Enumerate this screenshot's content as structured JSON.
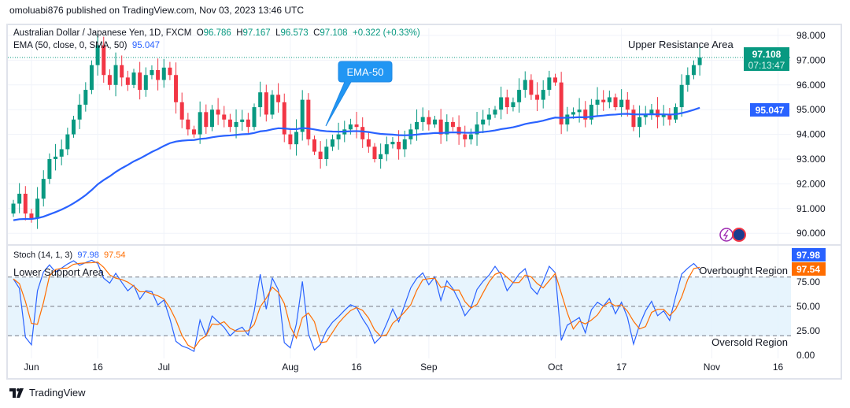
{
  "header": {
    "published": "omoluabi876 published on TradingView.com, Nov 03, 2023 13:46 UTC"
  },
  "legend": {
    "symbol": "Australian Dollar / Japanese Yen, 1D, FXCM",
    "o_label": "O",
    "o": "96.786",
    "h_label": "H",
    "h": "97.167",
    "l_label": "L",
    "l": "96.573",
    "c_label": "C",
    "c": "97.108",
    "change": "+0.322 (+0.33%)",
    "ema_label": "EMA (50, close, 0, SMA, 50)",
    "ema_value": "95.047",
    "stoch_label": "Stoch (14, 1, 3)",
    "stoch_k": "97.98",
    "stoch_d": "97.54"
  },
  "annotations": {
    "upper": "Upper Resistance Area",
    "lower": "Lower Support Area",
    "ema_callout": "EMA-50",
    "overbought": "Overbought Region",
    "oversold": "Oversold Region"
  },
  "price_tag": {
    "price": "97.108",
    "countdown": "07:13:47",
    "ema": "95.047"
  },
  "footer": {
    "brand": "TradingView"
  },
  "colors": {
    "up": "#089981",
    "down": "#f23645",
    "ema": "#2962ff",
    "k": "#2962ff",
    "d": "#ff6d00",
    "band": "#e3f2fd"
  },
  "chart_data": {
    "type": "candlestick",
    "title": "Australian Dollar / Japanese Yen, 1D, FXCM",
    "y_ticks": [
      "98.000",
      "97.000",
      "96.000",
      "95.000",
      "94.000",
      "93.000",
      "92.000",
      "91.000",
      "90.000"
    ],
    "ylim": [
      89.7,
      98.3
    ],
    "x_ticks": [
      {
        "label": "Jun",
        "i": 3
      },
      {
        "label": "16",
        "i": 14
      },
      {
        "label": "Jul",
        "i": 25
      },
      {
        "label": "Aug",
        "i": 46
      },
      {
        "label": "16",
        "i": 57
      },
      {
        "label": "Sep",
        "i": 69
      },
      {
        "label": "Oct",
        "i": 90
      },
      {
        "label": "17",
        "i": 101
      },
      {
        "label": "Nov",
        "i": 116
      },
      {
        "label": "16",
        "i": 127
      }
    ],
    "close": [
      91.2,
      91.6,
      90.8,
      90.6,
      91.4,
      92.2,
      93.0,
      93.1,
      93.4,
      94.0,
      94.6,
      95.2,
      95.8,
      96.8,
      97.6,
      96.4,
      96.0,
      96.8,
      96.3,
      96.0,
      96.5,
      95.8,
      96.4,
      96.6,
      96.2,
      96.7,
      96.4,
      95.3,
      94.6,
      94.2,
      94.0,
      94.9,
      94.3,
      95.0,
      94.8,
      94.6,
      94.3,
      94.5,
      94.6,
      94.3,
      95.1,
      95.7,
      94.8,
      95.6,
      95.3,
      94.0,
      93.6,
      94.1,
      95.4,
      93.8,
      93.3,
      93.0,
      93.5,
      93.8,
      94.0,
      94.2,
      94.4,
      94.3,
      93.8,
      93.5,
      93.0,
      93.2,
      93.6,
      93.7,
      93.4,
      93.8,
      94.2,
      94.5,
      94.7,
      94.4,
      94.6,
      94.0,
      94.5,
      94.3,
      94.0,
      93.8,
      94.0,
      94.4,
      94.6,
      94.8,
      95.0,
      95.5,
      95.1,
      95.3,
      95.8,
      96.2,
      95.6,
      95.4,
      95.8,
      96.3,
      96.1,
      94.4,
      94.8,
      94.9,
      95.0,
      94.6,
      95.2,
      95.4,
      95.3,
      95.5,
      95.1,
      95.4,
      95.0,
      94.3,
      94.7,
      94.8,
      95.0,
      94.7,
      94.8,
      94.6,
      95.1,
      96.0,
      96.4,
      96.8,
      97.108
    ],
    "first_open": 90.8,
    "ema_period": 50,
    "stoch": {
      "k_period": 14,
      "smooth_k": 1,
      "d_period": 3,
      "y_ticks": [
        "75.00",
        "50.00",
        "25.00",
        "0.00"
      ],
      "overbought": 80,
      "middle": 50,
      "oversold": 20,
      "ylim": [
        0,
        100
      ]
    }
  }
}
